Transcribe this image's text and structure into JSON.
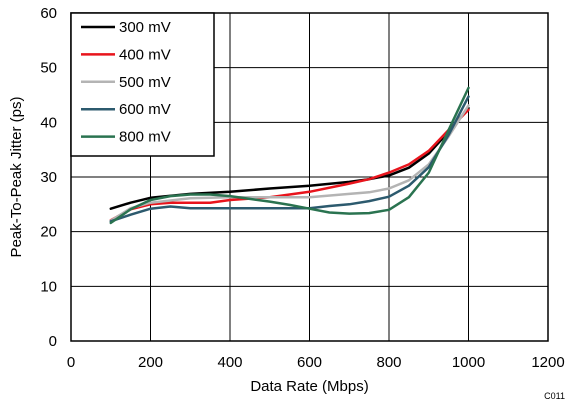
{
  "chart_data": {
    "type": "line",
    "xlabel": "Data Rate (Mbps)",
    "ylabel": "Peak-To-Peak Jitter (ps)",
    "xlim": [
      0,
      1200
    ],
    "ylim": [
      0,
      60
    ],
    "xticks": [
      0,
      200,
      400,
      600,
      800,
      1000,
      1200
    ],
    "yticks": [
      0,
      10,
      20,
      30,
      40,
      50,
      60
    ],
    "grid": "vertical and horizontal major gridlines",
    "legend_position": "top-left, inside plot",
    "figure_code": "C011",
    "series": [
      {
        "name": "300 mV",
        "color": "#000000",
        "x": [
          100,
          150,
          200,
          300,
          400,
          500,
          600,
          700,
          750,
          800,
          850,
          900,
          950,
          1000
        ],
        "y": [
          24.2,
          25.3,
          26.2,
          26.9,
          27.3,
          27.9,
          28.4,
          29.1,
          29.6,
          30.3,
          31.7,
          34.3,
          38.3,
          42.6
        ]
      },
      {
        "name": "400 mV",
        "color": "#e8141c",
        "x": [
          100,
          150,
          200,
          250,
          300,
          350,
          400,
          500,
          600,
          700,
          750,
          800,
          850,
          900,
          950,
          1000
        ],
        "y": [
          22.1,
          24.1,
          25.0,
          25.3,
          25.3,
          25.3,
          25.8,
          26.3,
          27.3,
          28.8,
          29.6,
          30.8,
          32.3,
          34.8,
          38.6,
          42.3
        ]
      },
      {
        "name": "500 mV",
        "color": "#b4b4b4",
        "x": [
          100,
          150,
          200,
          300,
          400,
          500,
          600,
          700,
          750,
          800,
          850,
          900,
          950,
          1000
        ],
        "y": [
          22.0,
          24.3,
          25.3,
          26.1,
          26.3,
          26.3,
          26.3,
          26.9,
          27.2,
          27.9,
          29.4,
          32.3,
          37.4,
          43.1
        ]
      },
      {
        "name": "600 mV",
        "color": "#2c5a6e",
        "x": [
          100,
          150,
          200,
          250,
          300,
          350,
          400,
          500,
          600,
          650,
          700,
          750,
          800,
          850,
          900,
          950,
          1000
        ],
        "y": [
          21.9,
          23.1,
          24.2,
          24.6,
          24.3,
          24.3,
          24.3,
          24.3,
          24.3,
          24.7,
          25.0,
          25.6,
          26.4,
          28.4,
          31.8,
          37.7,
          44.7
        ]
      },
      {
        "name": "800 mV",
        "color": "#2a7350",
        "x": [
          100,
          150,
          200,
          250,
          300,
          350,
          400,
          450,
          500,
          550,
          600,
          650,
          700,
          750,
          800,
          850,
          900,
          950,
          1000
        ],
        "y": [
          21.6,
          24.1,
          25.8,
          26.5,
          26.8,
          26.8,
          26.5,
          26.0,
          25.5,
          24.9,
          24.2,
          23.5,
          23.3,
          23.4,
          24.0,
          26.3,
          30.8,
          38.6,
          46.3
        ]
      }
    ]
  }
}
